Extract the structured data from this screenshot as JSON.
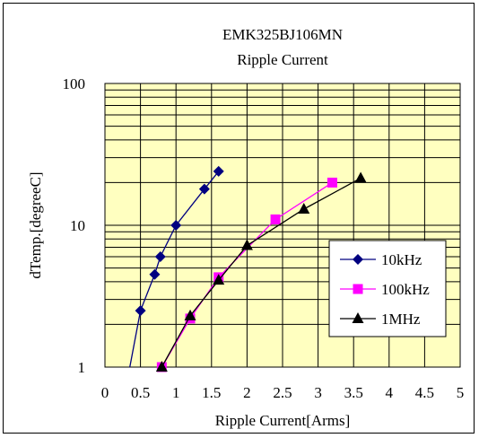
{
  "chart_data": {
    "type": "scatter",
    "title": "EMK325BJ106MN",
    "subtitle": "Ripple Current",
    "xlabel": "Ripple Current[Arms]",
    "ylabel": "dTemp.[degreeC]",
    "xlim": [
      0,
      5
    ],
    "ylim": [
      1,
      100
    ],
    "yscale": "log",
    "x_ticks": [
      "0",
      "0.5",
      "1",
      "1.5",
      "2",
      "2.5",
      "3",
      "3.5",
      "4",
      "4.5",
      "5"
    ],
    "y_ticks": [
      "1",
      "10",
      "100"
    ],
    "grid": true,
    "legend_position": "right-center",
    "plot_background": "#ffffc0",
    "series": [
      {
        "name": "10kHz",
        "color": "#000080",
        "marker": "diamond",
        "x": [
          0.35,
          0.5,
          0.7,
          0.78,
          1.0,
          1.4,
          1.6
        ],
        "y": [
          1.0,
          2.5,
          4.5,
          6.0,
          10.0,
          18.0,
          24.0
        ],
        "marked": [
          false,
          true,
          true,
          true,
          true,
          true,
          true
        ]
      },
      {
        "name": "100kHz",
        "color": "#ff00ff",
        "marker": "square",
        "x": [
          0.8,
          1.2,
          1.6,
          2.4,
          3.2
        ],
        "y": [
          1.0,
          2.2,
          4.3,
          11.0,
          20.0
        ],
        "marked": [
          true,
          true,
          true,
          true,
          true
        ]
      },
      {
        "name": "1MHz",
        "color": "#000000",
        "marker": "triangle",
        "x": [
          0.8,
          1.2,
          1.6,
          2.0,
          2.8,
          3.6
        ],
        "y": [
          1.0,
          2.3,
          4.1,
          7.2,
          13.0,
          21.5
        ],
        "marked": [
          true,
          true,
          true,
          true,
          true,
          true
        ]
      }
    ]
  }
}
